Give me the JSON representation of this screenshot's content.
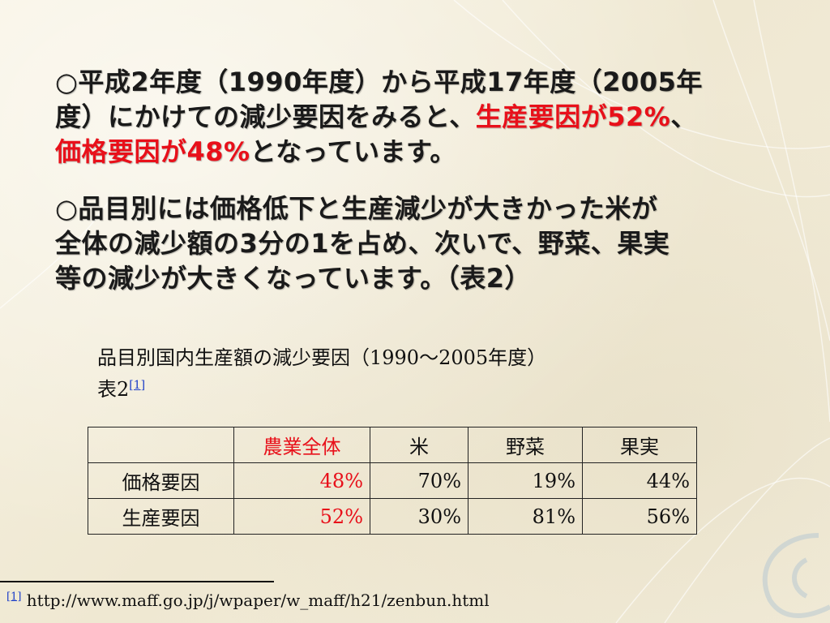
{
  "paragraph1": {
    "line1": "○平成2年度（1990年度）から平成17年度（2005年",
    "line2_lead": "度）にかけての減少要因をみると、",
    "line2_red": "生産要因が52%",
    "line2_tail": "、",
    "line3_red": "価格要因が48%",
    "line3_tail": "となっています。"
  },
  "paragraph2": {
    "line1": "○品目別には価格低下と生産減少が大きかった米が",
    "line2": "全体の減少額の3分の1を占め、次いで、野菜、果実",
    "line3": "等の減少が大きくなっています。（表2）"
  },
  "table_caption": {
    "title": "品目別国内生産額の減少要因（1990～2005年度）",
    "label": "表2",
    "ref": "[1]"
  },
  "table": {
    "headers": [
      "",
      "農業全体",
      "米",
      "野菜",
      "果実"
    ],
    "rows": [
      {
        "label": "価格要因",
        "cells": [
          "48%",
          "70%",
          "19%",
          "44%"
        ]
      },
      {
        "label": "生産要因",
        "cells": [
          "52%",
          "30%",
          "81%",
          "56%"
        ]
      }
    ]
  },
  "footnote": {
    "ref": "[1]",
    "url": "http://www.maff.go.jp/j/wpaper/w_maff/h21/zenbun.html"
  },
  "colors": {
    "highlight": "#e8101a",
    "text": "#1a1a1a",
    "link": "#1a3cc8",
    "background": "#f4efdd"
  }
}
